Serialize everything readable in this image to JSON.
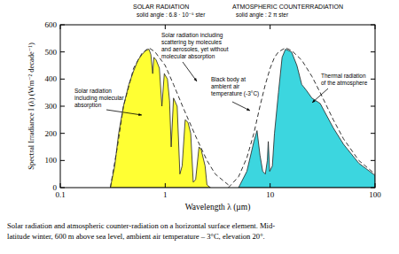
{
  "chart_data": {
    "type": "area",
    "headings": [
      {
        "title": "SOLAR RADIATION",
        "subtitle": "solid angle : 6.8 · 10⁻⁵ ster"
      },
      {
        "title": "ATMOSPHERIC COUNTERRADIATION",
        "subtitle": "solid angle : 2 π ster"
      }
    ],
    "x_label": "Wavelength  λ  (µm)",
    "y_label": "Spectral Irradiance  I (λ)  (Wm⁻² decade⁻¹)",
    "log": "x",
    "xlim": [
      0.1,
      100
    ],
    "xticks": [
      0.1,
      1,
      10,
      100
    ],
    "ylim": [
      0,
      600
    ],
    "yticks": [
      0,
      100,
      200,
      300,
      400,
      500,
      600
    ],
    "grid": false,
    "series": [
      {
        "type": "area",
        "color": "#ffff33",
        "line_style": "solid",
        "x": [
          0.3,
          0.33,
          0.36,
          0.4,
          0.45,
          0.5,
          0.55,
          0.6,
          0.65,
          0.7,
          0.73,
          0.76,
          0.78,
          0.82,
          0.88,
          0.93,
          0.98,
          1.05,
          1.1,
          1.14,
          1.2,
          1.3,
          1.38,
          1.45,
          1.55,
          1.65,
          1.75,
          1.85,
          1.95,
          2.1,
          2.2,
          2.4,
          2.5,
          2.7
        ],
        "values": [
          0,
          80,
          200,
          300,
          380,
          430,
          470,
          490,
          505,
          510,
          490,
          420,
          480,
          470,
          440,
          300,
          420,
          400,
          320,
          150,
          330,
          300,
          50,
          80,
          250,
          240,
          200,
          20,
          30,
          150,
          140,
          80,
          10,
          0
        ]
      },
      {
        "type": "line",
        "color": "#333333",
        "line_style": "dashed",
        "x": [
          0.3,
          0.35,
          0.4,
          0.5,
          0.6,
          0.7,
          0.8,
          1,
          1.2,
          1.5,
          2,
          2.5,
          3,
          4
        ],
        "values": [
          0,
          150,
          300,
          440,
          495,
          515,
          500,
          450,
          380,
          290,
          180,
          100,
          50,
          10
        ]
      },
      {
        "type": "area",
        "color": "#3cd6df",
        "line_style": "solid",
        "x": [
          5,
          6,
          7,
          7.5,
          8,
          8.5,
          9,
          9.4,
          9.6,
          9.9,
          10.5,
          11,
          12,
          13,
          14,
          16,
          18,
          20,
          22,
          25,
          30,
          40,
          50,
          70,
          100
        ],
        "values": [
          0,
          60,
          170,
          210,
          120,
          60,
          50,
          100,
          170,
          60,
          80,
          200,
          350,
          480,
          510,
          500,
          450,
          380,
          360,
          330,
          310,
          220,
          160,
          90,
          45
        ]
      },
      {
        "type": "line",
        "color": "#333333",
        "line_style": "dashed",
        "x": [
          4,
          5,
          6,
          7,
          8,
          9,
          10,
          11,
          12,
          14,
          16,
          20,
          25,
          30,
          40,
          50,
          70,
          100
        ],
        "values": [
          0,
          40,
          110,
          200,
          300,
          380,
          440,
          480,
          500,
          515,
          505,
          470,
          410,
          350,
          250,
          180,
          100,
          50
        ]
      }
    ],
    "annotations": [
      {
        "lines": [
          "Solar radiation including",
          "scattering by molecules",
          "and aerosoles, yet without",
          "molecular absorption"
        ]
      },
      {
        "lines": [
          "Solar radiation",
          "including molecular",
          "absorption"
        ]
      },
      {
        "lines": [
          "Black body at",
          "ambient air",
          "temperature (-3°C)"
        ]
      },
      {
        "lines": [
          "Thermal radiation",
          "of the atmosphere"
        ]
      }
    ],
    "caption": [
      "Solar radiation and atmospheric counter-radiation on a horizontal surface element. Mid-",
      "latitude winter, 600 m above sea level, ambient air temperature  – 3°C, elevation 20°."
    ]
  }
}
